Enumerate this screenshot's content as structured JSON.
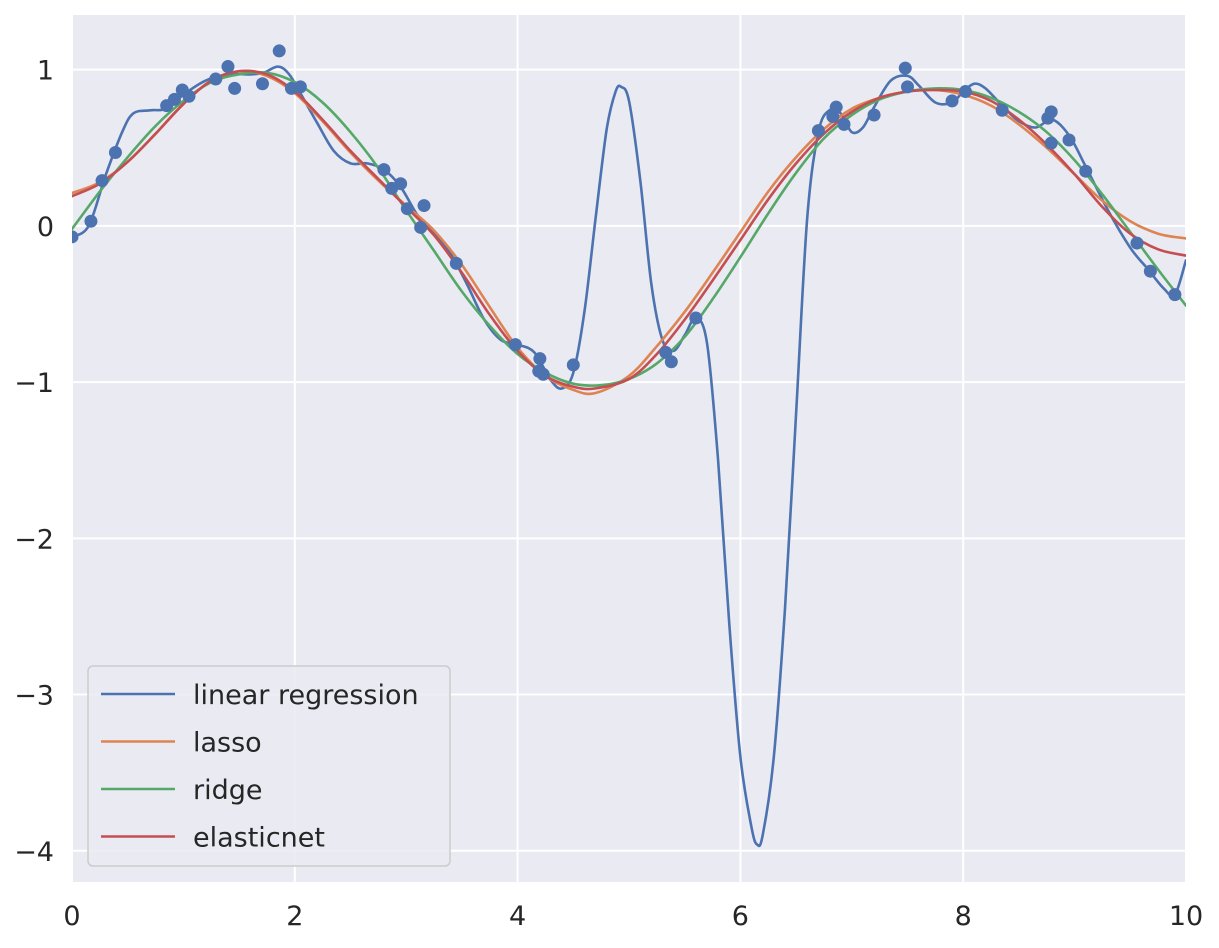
{
  "chart_data": {
    "type": "line",
    "title": "",
    "xlabel": "",
    "ylabel": "",
    "xlim": [
      0,
      10
    ],
    "ylim": [
      -4.2,
      1.35
    ],
    "grid": true,
    "legend_position": "lower-left",
    "x_ticks": [
      {
        "value": 0,
        "label": "0"
      },
      {
        "value": 2,
        "label": "2"
      },
      {
        "value": 4,
        "label": "4"
      },
      {
        "value": 6,
        "label": "6"
      },
      {
        "value": 8,
        "label": "8"
      },
      {
        "value": 10,
        "label": "10"
      }
    ],
    "y_ticks": [
      {
        "value": 1,
        "label": "1"
      },
      {
        "value": 0,
        "label": "0"
      },
      {
        "value": -1,
        "label": "−1"
      },
      {
        "value": -2,
        "label": "−2"
      },
      {
        "value": -3,
        "label": "−3"
      },
      {
        "value": -4,
        "label": "−4"
      }
    ],
    "scatter": {
      "color": "#4c72b0",
      "points": [
        [
          0.0,
          -0.07
        ],
        [
          0.17,
          0.03
        ],
        [
          0.27,
          0.29
        ],
        [
          0.39,
          0.47
        ],
        [
          0.85,
          0.77
        ],
        [
          0.92,
          0.81
        ],
        [
          0.99,
          0.87
        ],
        [
          1.05,
          0.83
        ],
        [
          1.29,
          0.94
        ],
        [
          1.4,
          1.02
        ],
        [
          1.46,
          0.88
        ],
        [
          1.71,
          0.91
        ],
        [
          1.86,
          1.12
        ],
        [
          1.97,
          0.88
        ],
        [
          2.05,
          0.89
        ],
        [
          2.8,
          0.36
        ],
        [
          2.87,
          0.24
        ],
        [
          2.95,
          0.27
        ],
        [
          3.01,
          0.11
        ],
        [
          3.13,
          -0.01
        ],
        [
          3.16,
          0.13
        ],
        [
          3.45,
          -0.24
        ],
        [
          3.98,
          -0.76
        ],
        [
          4.2,
          -0.85
        ],
        [
          4.19,
          -0.93
        ],
        [
          4.23,
          -0.95
        ],
        [
          4.5,
          -0.89
        ],
        [
          5.33,
          -0.81
        ],
        [
          5.38,
          -0.87
        ],
        [
          5.6,
          -0.59
        ],
        [
          6.7,
          0.61
        ],
        [
          6.83,
          0.7
        ],
        [
          6.86,
          0.76
        ],
        [
          6.93,
          0.65
        ],
        [
          7.2,
          0.71
        ],
        [
          7.48,
          1.01
        ],
        [
          7.5,
          0.89
        ],
        [
          7.9,
          0.8
        ],
        [
          8.02,
          0.86
        ],
        [
          8.35,
          0.74
        ],
        [
          8.76,
          0.69
        ],
        [
          8.79,
          0.73
        ],
        [
          8.79,
          0.53
        ],
        [
          8.95,
          0.55
        ],
        [
          9.1,
          0.35
        ],
        [
          9.56,
          -0.11
        ],
        [
          9.68,
          -0.29
        ],
        [
          9.9,
          -0.44
        ]
      ]
    },
    "series": [
      {
        "name": "linear regression",
        "color": "#4c72b0",
        "points": [
          [
            0.0,
            -0.07
          ],
          [
            0.15,
            0.0
          ],
          [
            0.3,
            0.32
          ],
          [
            0.45,
            0.6
          ],
          [
            0.55,
            0.72
          ],
          [
            0.7,
            0.74
          ],
          [
            0.85,
            0.75
          ],
          [
            1.0,
            0.84
          ],
          [
            1.2,
            0.93
          ],
          [
            1.4,
            0.97
          ],
          [
            1.6,
            0.97
          ],
          [
            1.72,
            0.98
          ],
          [
            1.85,
            1.02
          ],
          [
            1.95,
            0.97
          ],
          [
            2.05,
            0.85
          ],
          [
            2.2,
            0.66
          ],
          [
            2.35,
            0.48
          ],
          [
            2.5,
            0.4
          ],
          [
            2.65,
            0.4
          ],
          [
            2.8,
            0.36
          ],
          [
            2.95,
            0.25
          ],
          [
            3.1,
            0.07
          ],
          [
            3.25,
            -0.05
          ],
          [
            3.4,
            -0.18
          ],
          [
            3.55,
            -0.38
          ],
          [
            3.7,
            -0.6
          ],
          [
            3.85,
            -0.73
          ],
          [
            4.0,
            -0.76
          ],
          [
            4.15,
            -0.81
          ],
          [
            4.3,
            -0.99
          ],
          [
            4.4,
            -1.04
          ],
          [
            4.5,
            -0.94
          ],
          [
            4.6,
            -0.55
          ],
          [
            4.7,
            0.05
          ],
          [
            4.8,
            0.62
          ],
          [
            4.88,
            0.86
          ],
          [
            4.93,
            0.89
          ],
          [
            5.0,
            0.8
          ],
          [
            5.1,
            0.3
          ],
          [
            5.2,
            -0.37
          ],
          [
            5.3,
            -0.73
          ],
          [
            5.4,
            -0.8
          ],
          [
            5.5,
            -0.7
          ],
          [
            5.6,
            -0.59
          ],
          [
            5.7,
            -0.75
          ],
          [
            5.8,
            -1.5
          ],
          [
            5.9,
            -2.55
          ],
          [
            6.0,
            -3.4
          ],
          [
            6.1,
            -3.85
          ],
          [
            6.15,
            -3.96
          ],
          [
            6.2,
            -3.9
          ],
          [
            6.3,
            -3.4
          ],
          [
            6.4,
            -2.45
          ],
          [
            6.5,
            -1.2
          ],
          [
            6.6,
            0.05
          ],
          [
            6.7,
            0.6
          ],
          [
            6.8,
            0.74
          ],
          [
            6.9,
            0.72
          ],
          [
            7.0,
            0.6
          ],
          [
            7.1,
            0.63
          ],
          [
            7.2,
            0.76
          ],
          [
            7.35,
            0.93
          ],
          [
            7.5,
            0.96
          ],
          [
            7.6,
            0.9
          ],
          [
            7.75,
            0.79
          ],
          [
            7.9,
            0.79
          ],
          [
            8.0,
            0.86
          ],
          [
            8.1,
            0.91
          ],
          [
            8.2,
            0.88
          ],
          [
            8.35,
            0.77
          ],
          [
            8.5,
            0.67
          ],
          [
            8.65,
            0.63
          ],
          [
            8.8,
            0.68
          ],
          [
            8.95,
            0.58
          ],
          [
            9.1,
            0.38
          ],
          [
            9.3,
            0.1
          ],
          [
            9.5,
            -0.14
          ],
          [
            9.65,
            -0.27
          ],
          [
            9.8,
            -0.4
          ],
          [
            9.9,
            -0.44
          ],
          [
            10.0,
            -0.22
          ]
        ]
      },
      {
        "name": "lasso",
        "color": "#dd8452",
        "points": [
          [
            0.0,
            0.21
          ],
          [
            0.25,
            0.28
          ],
          [
            0.5,
            0.41
          ],
          [
            0.75,
            0.59
          ],
          [
            1.0,
            0.78
          ],
          [
            1.25,
            0.93
          ],
          [
            1.5,
            0.99
          ],
          [
            1.75,
            0.96
          ],
          [
            2.0,
            0.85
          ],
          [
            2.25,
            0.67
          ],
          [
            2.5,
            0.47
          ],
          [
            2.75,
            0.29
          ],
          [
            3.0,
            0.13
          ],
          [
            3.25,
            -0.03
          ],
          [
            3.5,
            -0.25
          ],
          [
            3.75,
            -0.52
          ],
          [
            4.0,
            -0.78
          ],
          [
            4.25,
            -0.96
          ],
          [
            4.5,
            -1.05
          ],
          [
            4.7,
            -1.07
          ],
          [
            5.0,
            -0.96
          ],
          [
            5.25,
            -0.77
          ],
          [
            5.5,
            -0.55
          ],
          [
            5.75,
            -0.3
          ],
          [
            6.0,
            -0.04
          ],
          [
            6.25,
            0.22
          ],
          [
            6.5,
            0.44
          ],
          [
            6.75,
            0.62
          ],
          [
            7.0,
            0.75
          ],
          [
            7.25,
            0.82
          ],
          [
            7.5,
            0.86
          ],
          [
            7.75,
            0.87
          ],
          [
            8.0,
            0.84
          ],
          [
            8.25,
            0.77
          ],
          [
            8.5,
            0.65
          ],
          [
            8.75,
            0.5
          ],
          [
            9.0,
            0.33
          ],
          [
            9.25,
            0.16
          ],
          [
            9.5,
            0.03
          ],
          [
            9.75,
            -0.05
          ],
          [
            10.0,
            -0.08
          ]
        ]
      },
      {
        "name": "ridge",
        "color": "#55a868",
        "points": [
          [
            0.0,
            -0.02
          ],
          [
            0.25,
            0.22
          ],
          [
            0.5,
            0.44
          ],
          [
            0.75,
            0.64
          ],
          [
            1.0,
            0.8
          ],
          [
            1.25,
            0.92
          ],
          [
            1.5,
            0.97
          ],
          [
            1.75,
            0.98
          ],
          [
            2.0,
            0.92
          ],
          [
            2.25,
            0.79
          ],
          [
            2.5,
            0.6
          ],
          [
            2.75,
            0.37
          ],
          [
            3.0,
            0.1
          ],
          [
            3.25,
            -0.16
          ],
          [
            3.5,
            -0.42
          ],
          [
            3.75,
            -0.64
          ],
          [
            4.0,
            -0.82
          ],
          [
            4.25,
            -0.94
          ],
          [
            4.5,
            -1.01
          ],
          [
            4.75,
            -1.02
          ],
          [
            5.0,
            -0.98
          ],
          [
            5.25,
            -0.88
          ],
          [
            5.5,
            -0.71
          ],
          [
            5.75,
            -0.47
          ],
          [
            6.0,
            -0.2
          ],
          [
            6.25,
            0.08
          ],
          [
            6.5,
            0.34
          ],
          [
            6.75,
            0.56
          ],
          [
            7.0,
            0.71
          ],
          [
            7.25,
            0.81
          ],
          [
            7.5,
            0.86
          ],
          [
            7.75,
            0.88
          ],
          [
            8.0,
            0.87
          ],
          [
            8.25,
            0.82
          ],
          [
            8.5,
            0.73
          ],
          [
            8.75,
            0.6
          ],
          [
            9.0,
            0.42
          ],
          [
            9.25,
            0.2
          ],
          [
            9.5,
            -0.04
          ],
          [
            9.75,
            -0.28
          ],
          [
            10.0,
            -0.51
          ]
        ]
      },
      {
        "name": "elasticnet",
        "color": "#c44e52",
        "points": [
          [
            0.0,
            0.19
          ],
          [
            0.25,
            0.27
          ],
          [
            0.5,
            0.41
          ],
          [
            0.75,
            0.59
          ],
          [
            1.0,
            0.78
          ],
          [
            1.25,
            0.93
          ],
          [
            1.5,
            0.99
          ],
          [
            1.75,
            0.97
          ],
          [
            2.0,
            0.86
          ],
          [
            2.25,
            0.68
          ],
          [
            2.5,
            0.48
          ],
          [
            2.75,
            0.3
          ],
          [
            3.0,
            0.12
          ],
          [
            3.25,
            -0.06
          ],
          [
            3.5,
            -0.3
          ],
          [
            3.75,
            -0.57
          ],
          [
            4.0,
            -0.8
          ],
          [
            4.25,
            -0.96
          ],
          [
            4.5,
            -1.03
          ],
          [
            4.7,
            -1.04
          ],
          [
            5.0,
            -0.98
          ],
          [
            5.25,
            -0.82
          ],
          [
            5.5,
            -0.6
          ],
          [
            5.75,
            -0.35
          ],
          [
            6.0,
            -0.09
          ],
          [
            6.25,
            0.17
          ],
          [
            6.5,
            0.4
          ],
          [
            6.75,
            0.59
          ],
          [
            7.0,
            0.73
          ],
          [
            7.25,
            0.82
          ],
          [
            7.5,
            0.86
          ],
          [
            7.75,
            0.87
          ],
          [
            8.0,
            0.86
          ],
          [
            8.25,
            0.8
          ],
          [
            8.5,
            0.68
          ],
          [
            8.75,
            0.52
          ],
          [
            9.0,
            0.33
          ],
          [
            9.25,
            0.12
          ],
          [
            9.5,
            -0.05
          ],
          [
            9.75,
            -0.15
          ],
          [
            10.0,
            -0.19
          ]
        ]
      }
    ]
  }
}
